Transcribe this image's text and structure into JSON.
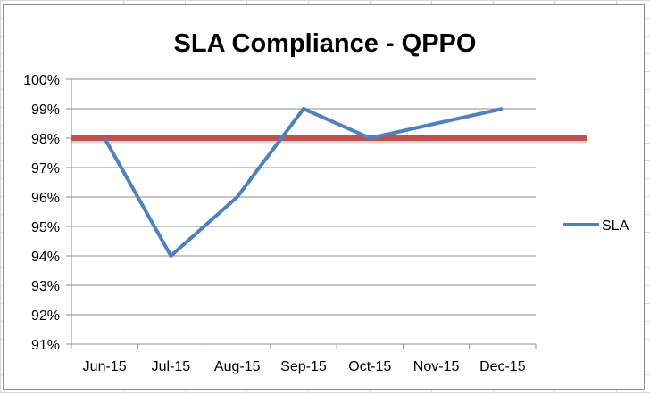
{
  "chart_data": {
    "type": "line",
    "title": "SLA Compliance - QPPO",
    "categories": [
      "Jun-15",
      "Jul-15",
      "Aug-15",
      "Sep-15",
      "Oct-15",
      "Nov-15",
      "Dec-15"
    ],
    "series": [
      {
        "name": "SLA",
        "values": [
          98,
          94,
          96,
          99,
          98,
          null,
          99
        ],
        "color": "#4f81bd"
      }
    ],
    "target_line": {
      "value": 98,
      "color": "#c0504d"
    },
    "y_ticks": [
      "91%",
      "92%",
      "93%",
      "94%",
      "95%",
      "96%",
      "97%",
      "98%",
      "99%",
      "100%"
    ],
    "ylim": [
      91,
      100
    ],
    "grid": true,
    "legend": "right",
    "xlabel": "",
    "ylabel": ""
  }
}
